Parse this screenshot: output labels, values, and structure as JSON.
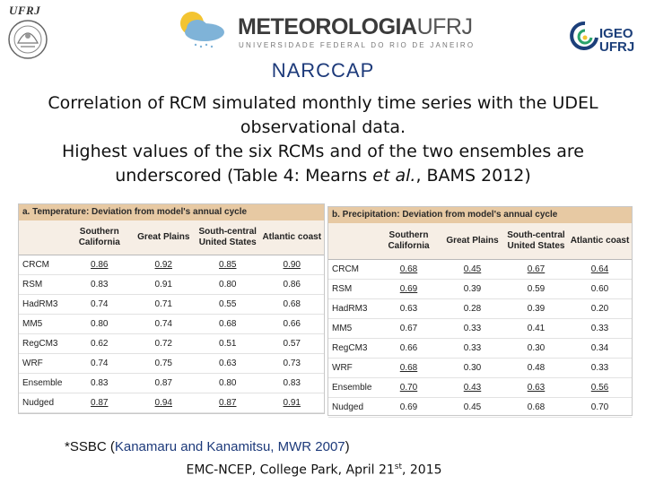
{
  "header": {
    "left_logo_text": "UFRJ",
    "center_logo_title": "METEOROLOGIA",
    "center_logo_title_suffix": "UFRJ",
    "center_logo_subtitle": "UNIVERSIDADE FEDERAL DO RIO DE JANEIRO",
    "right_logo_line1": "IGEO",
    "right_logo_line2": "UFRJ"
  },
  "title": "NARCCAP",
  "subtitle": {
    "line1": "Correlation of RCM simulated monthly time series with the UDEL",
    "line2": "observational data.",
    "line3": "Highest values of the six RCMs and of the two ensembles are",
    "line4a": "underscored (Table 4: Mearns ",
    "line4b": "et al.",
    "line4c": ", BAMS 2012)"
  },
  "table_a": {
    "caption": "a. Temperature: Deviation from model's annual cycle",
    "columns": [
      "",
      "Southern California",
      "Great Plains",
      "South-central United States",
      "Atlantic coast"
    ],
    "rows": [
      {
        "model": "CRCM",
        "values": [
          "0.86",
          "0.92",
          "0.85",
          "0.90"
        ],
        "underlined": [
          true,
          true,
          true,
          true
        ]
      },
      {
        "model": "RSM",
        "values": [
          "0.83",
          "0.91",
          "0.80",
          "0.86"
        ],
        "underlined": [
          false,
          false,
          false,
          false
        ]
      },
      {
        "model": "HadRM3",
        "values": [
          "0.74",
          "0.71",
          "0.55",
          "0.68"
        ],
        "underlined": [
          false,
          false,
          false,
          false
        ]
      },
      {
        "model": "MM5",
        "values": [
          "0.80",
          "0.74",
          "0.68",
          "0.66"
        ],
        "underlined": [
          false,
          false,
          false,
          false
        ]
      },
      {
        "model": "RegCM3",
        "values": [
          "0.62",
          "0.72",
          "0.51",
          "0.57"
        ],
        "underlined": [
          false,
          false,
          false,
          false
        ]
      },
      {
        "model": "WRF",
        "values": [
          "0.74",
          "0.75",
          "0.63",
          "0.73"
        ],
        "underlined": [
          false,
          false,
          false,
          false
        ]
      },
      {
        "model": "Ensemble",
        "values": [
          "0.83",
          "0.87",
          "0.80",
          "0.83"
        ],
        "underlined": [
          false,
          false,
          false,
          false
        ]
      },
      {
        "model": "Nudged",
        "values": [
          "0.87",
          "0.94",
          "0.87",
          "0.91"
        ],
        "underlined": [
          true,
          true,
          true,
          true
        ]
      }
    ]
  },
  "table_b": {
    "caption": "b. Precipitation: Deviation from model's annual cycle",
    "columns": [
      "",
      "Southern California",
      "Great Plains",
      "South-central United States",
      "Atlantic coast"
    ],
    "rows": [
      {
        "model": "CRCM",
        "values": [
          "0.68",
          "0.45",
          "0.67",
          "0.64"
        ],
        "underlined": [
          true,
          true,
          true,
          true
        ]
      },
      {
        "model": "RSM",
        "values": [
          "0.69",
          "0.39",
          "0.59",
          "0.60"
        ],
        "underlined": [
          true,
          false,
          false,
          false
        ]
      },
      {
        "model": "HadRM3",
        "values": [
          "0.63",
          "0.28",
          "0.39",
          "0.20"
        ],
        "underlined": [
          false,
          false,
          false,
          false
        ]
      },
      {
        "model": "MM5",
        "values": [
          "0.67",
          "0.33",
          "0.41",
          "0.33"
        ],
        "underlined": [
          false,
          false,
          false,
          false
        ]
      },
      {
        "model": "RegCM3",
        "values": [
          "0.66",
          "0.33",
          "0.30",
          "0.34"
        ],
        "underlined": [
          false,
          false,
          false,
          false
        ]
      },
      {
        "model": "WRF",
        "values": [
          "0.68",
          "0.30",
          "0.48",
          "0.33"
        ],
        "underlined": [
          true,
          false,
          false,
          false
        ]
      },
      {
        "model": "Ensemble",
        "values": [
          "0.70",
          "0.43",
          "0.63",
          "0.56"
        ],
        "underlined": [
          true,
          true,
          true,
          true
        ]
      },
      {
        "model": "Nudged",
        "values": [
          "0.69",
          "0.45",
          "0.68",
          "0.70"
        ],
        "underlined": [
          false,
          false,
          false,
          false
        ]
      }
    ]
  },
  "note": {
    "prefix": "*SSBC (",
    "reference": "Kanamaru and Kanamitsu, MWR 2007",
    "suffix": ")"
  },
  "footer": {
    "text": "EMC-NCEP, College Park, April 21",
    "sup": "st",
    "year": ", 2015"
  }
}
